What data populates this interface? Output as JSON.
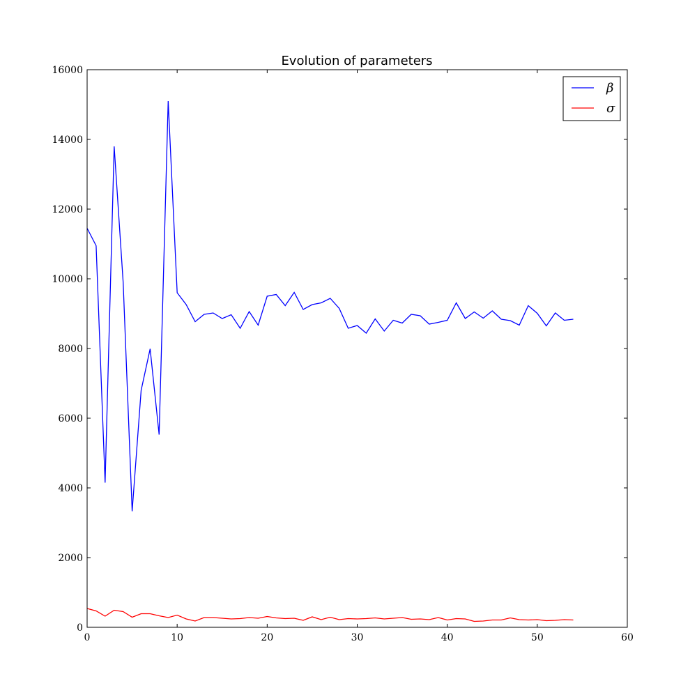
{
  "chart_data": {
    "type": "line",
    "title": "Evolution of parameters",
    "xlabel": "",
    "ylabel": "",
    "xlim": [
      0,
      60
    ],
    "ylim": [
      0,
      16000
    ],
    "xticks": [
      0,
      10,
      20,
      30,
      40,
      50,
      60
    ],
    "yticks": [
      0,
      2000,
      4000,
      6000,
      8000,
      10000,
      12000,
      14000,
      16000
    ],
    "grid": false,
    "legend_position": "top-right",
    "series": [
      {
        "name": "β",
        "color": "#0000ff",
        "x": [
          0,
          1,
          2,
          3,
          4,
          5,
          6,
          7,
          8,
          9,
          10,
          11,
          12,
          13,
          14,
          15,
          16,
          17,
          18,
          19,
          20,
          21,
          22,
          23,
          24,
          25,
          26,
          27,
          28,
          29,
          30,
          31,
          32,
          33,
          34,
          35,
          36,
          37,
          38,
          39,
          40,
          41,
          42,
          43,
          44,
          45,
          46,
          47,
          48,
          49,
          50,
          51,
          52,
          53,
          54
        ],
        "values": [
          11450,
          10950,
          4150,
          13800,
          9900,
          3330,
          6800,
          7990,
          5530,
          15100,
          9600,
          9260,
          8770,
          8980,
          9020,
          8860,
          8970,
          8580,
          9060,
          8670,
          9500,
          9550,
          9230,
          9610,
          9120,
          9260,
          9310,
          9440,
          9150,
          8580,
          8660,
          8440,
          8850,
          8500,
          8810,
          8730,
          8980,
          8940,
          8700,
          8750,
          8810,
          9310,
          8860,
          9050,
          8870,
          9080,
          8840,
          8800,
          8670,
          9230,
          9010,
          8650,
          9020,
          8810,
          8840
        ]
      },
      {
        "name": "σ",
        "color": "#ff0000",
        "x": [
          0,
          1,
          2,
          3,
          4,
          5,
          6,
          7,
          8,
          9,
          10,
          11,
          12,
          13,
          14,
          15,
          16,
          17,
          18,
          19,
          20,
          21,
          22,
          23,
          24,
          25,
          26,
          27,
          28,
          29,
          30,
          31,
          32,
          33,
          34,
          35,
          36,
          37,
          38,
          39,
          40,
          41,
          42,
          43,
          44,
          45,
          46,
          47,
          48,
          49,
          50,
          51,
          52,
          53,
          54
        ],
        "values": [
          540,
          470,
          320,
          490,
          450,
          290,
          390,
          390,
          330,
          280,
          350,
          240,
          180,
          280,
          280,
          260,
          240,
          250,
          280,
          260,
          310,
          270,
          250,
          260,
          200,
          300,
          220,
          290,
          220,
          250,
          240,
          250,
          270,
          240,
          260,
          280,
          230,
          240,
          220,
          280,
          210,
          250,
          240,
          170,
          180,
          210,
          210,
          270,
          220,
          210,
          220,
          190,
          200,
          220,
          210
        ]
      }
    ]
  }
}
